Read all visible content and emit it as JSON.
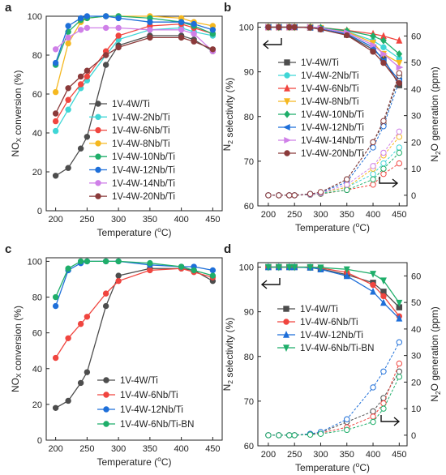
{
  "chart_data": [
    {
      "panel": "a",
      "type": "line",
      "xlabel": "Temperature (°C)",
      "ylabel": "NOx conversion (%)",
      "xlim": [
        185,
        465
      ],
      "ylim": [
        0,
        100
      ],
      "xticks": [
        200,
        250,
        300,
        350,
        400,
        450
      ],
      "yticks": [
        0,
        20,
        40,
        60,
        80,
        100
      ],
      "legend": "center-right",
      "x": [
        200,
        220,
        240,
        250,
        280,
        300,
        350,
        400,
        420,
        450
      ],
      "series": [
        {
          "name": "1V-4W/Ti",
          "color": "#4d4d4d",
          "marker": "circle",
          "values": [
            18,
            22,
            32,
            38,
            75,
            85,
            90,
            90,
            88,
            82
          ]
        },
        {
          "name": "1V-4W-2Nb/Ti",
          "color": "#3fd6d6",
          "marker": "circle",
          "values": [
            41,
            52,
            63,
            67,
            80,
            88,
            93,
            94,
            92,
            90
          ]
        },
        {
          "name": "1V-4W-6Nb/Ti",
          "color": "#f0453f",
          "marker": "circle",
          "values": [
            46,
            57,
            65,
            69,
            82,
            90,
            95,
            96,
            94,
            91
          ]
        },
        {
          "name": "1V-4W-8Nb/Ti",
          "color": "#f5b820",
          "marker": "circle",
          "values": [
            61,
            86,
            97,
            99,
            100,
            100,
            100,
            99,
            97,
            95
          ]
        },
        {
          "name": "1V-4W-10Nb/Ti",
          "color": "#1fae6a",
          "marker": "circle",
          "values": [
            75,
            92,
            98,
            99,
            100,
            100,
            99,
            97,
            95,
            91
          ]
        },
        {
          "name": "1V-4W-12Nb/Ti",
          "color": "#1e6fd9",
          "marker": "circle",
          "values": [
            76,
            95,
            99,
            100,
            100,
            99,
            97,
            97,
            96,
            93
          ]
        },
        {
          "name": "1V-4W-14Nb/Ti",
          "color": "#cf80e8",
          "marker": "circle",
          "values": [
            83,
            89,
            93,
            94,
            94,
            94,
            93,
            93,
            91,
            82
          ]
        },
        {
          "name": "1V-4W-20Nb/Ti",
          "color": "#8b3a3a",
          "marker": "circle",
          "values": [
            50,
            63,
            69,
            72,
            80,
            84,
            89,
            89,
            87,
            83
          ]
        }
      ]
    },
    {
      "panel": "b",
      "type": "line",
      "xlabel": "Temperature (°C)",
      "ylabel": "N2 selectivity (%)",
      "y2label": "N2O generation (ppm)",
      "xlim": [
        180,
        465
      ],
      "ylim": [
        60,
        101
      ],
      "y2lim": [
        -4,
        65
      ],
      "xticks": [
        200,
        250,
        300,
        350,
        400,
        450
      ],
      "yticks": [
        60,
        70,
        80,
        90,
        100
      ],
      "y2ticks": [
        0,
        10,
        20,
        30,
        40,
        50,
        60
      ],
      "legend": "left",
      "x": [
        200,
        220,
        240,
        250,
        280,
        300,
        350,
        400,
        420,
        450
      ],
      "series": [
        {
          "name": "1V-4W/Ti",
          "color": "#4d4d4d",
          "marker": "square",
          "selectivity": [
            100,
            100,
            100,
            100,
            99.9,
            99.6,
            98.3,
            95,
            93,
            87
          ],
          "n2o": [
            0,
            0,
            0,
            0,
            0.5,
            1,
            6,
            20,
            27,
            45
          ]
        },
        {
          "name": "1V-4W-2Nb/Ti",
          "color": "#3fd6d6",
          "marker": "circle",
          "selectivity": [
            100,
            100,
            100,
            100,
            100,
            99.8,
            99,
            97,
            95.5,
            93
          ],
          "n2o": [
            0,
            0,
            0,
            0,
            0.3,
            0.8,
            3,
            8,
            12,
            18
          ]
        },
        {
          "name": "1V-4W-6Nb/Ti",
          "color": "#f0453f",
          "marker": "triangle",
          "selectivity": [
            100,
            100,
            100,
            100,
            100,
            99.9,
            99.3,
            98.5,
            98,
            97
          ],
          "n2o": [
            0,
            0,
            0,
            0,
            0.2,
            0.5,
            2,
            4,
            8,
            12
          ]
        },
        {
          "name": "1V-4W-8Nb/Ti",
          "color": "#f5b820",
          "marker": "triangle-down",
          "selectivity": [
            100,
            100,
            100,
            100,
            100,
            99.8,
            99,
            96.5,
            94,
            92
          ],
          "n2o": [
            0,
            0,
            0,
            0,
            0.3,
            1,
            3,
            10,
            15,
            22
          ]
        },
        {
          "name": "1V-4W-10Nb/Ti",
          "color": "#1fae6a",
          "marker": "diamond",
          "selectivity": [
            100,
            100,
            100,
            100,
            100,
            99.9,
            99.2,
            98,
            97,
            94
          ],
          "n2o": [
            0,
            0,
            0,
            0,
            0.2,
            0.6,
            2,
            6,
            10,
            16
          ]
        },
        {
          "name": "1V-4W-12Nb/Ti",
          "color": "#1e6fd9",
          "marker": "triangle-left",
          "selectivity": [
            100,
            100,
            100,
            100,
            99.9,
            99.6,
            98.5,
            95.5,
            92.5,
            88
          ],
          "n2o": [
            0,
            0,
            0,
            0,
            0.5,
            1,
            5,
            18,
            26,
            43
          ]
        },
        {
          "name": "1V-4W-14Nb/Ti",
          "color": "#cf80e8",
          "marker": "triangle-right",
          "selectivity": [
            100,
            100,
            100,
            100,
            100,
            99.8,
            98.8,
            96,
            94,
            91
          ],
          "n2o": [
            0,
            0,
            0,
            0,
            0.3,
            0.8,
            4,
            11,
            16,
            24
          ]
        },
        {
          "name": "1V-4W-20Nb/Ti",
          "color": "#8b3a3a",
          "marker": "circle",
          "selectivity": [
            100,
            100,
            100,
            100,
            99.9,
            99.5,
            98.2,
            94.5,
            92,
            87.5
          ],
          "n2o": [
            0,
            0,
            0,
            0,
            0.5,
            1.2,
            6,
            20,
            28,
            46
          ]
        }
      ]
    },
    {
      "panel": "c",
      "type": "line",
      "xlabel": "Temperature (°C)",
      "ylabel": "NOx conversion (%)",
      "xlim": [
        185,
        465
      ],
      "ylim": [
        0,
        102
      ],
      "xticks": [
        200,
        250,
        300,
        350,
        400,
        450
      ],
      "yticks": [
        0,
        20,
        40,
        60,
        80,
        100
      ],
      "legend": "bottom-right",
      "x": [
        200,
        220,
        240,
        250,
        280,
        300,
        350,
        400,
        420,
        450
      ],
      "series": [
        {
          "name": "1V-4W/Ti",
          "color": "#4d4d4d",
          "marker": "circle",
          "values": [
            18,
            22,
            32,
            38,
            75,
            92,
            96,
            96,
            95,
            89
          ]
        },
        {
          "name": "1V-4W-6Nb/Ti",
          "color": "#f0453f",
          "marker": "circle",
          "values": [
            46,
            57,
            65,
            69,
            82,
            89,
            95,
            96,
            94,
            91
          ]
        },
        {
          "name": "1V-4W-12Nb/Ti",
          "color": "#1e6fd9",
          "marker": "circle",
          "values": [
            75,
            95,
            99,
            100,
            100,
            100,
            98,
            97,
            97,
            95
          ]
        },
        {
          "name": "1V-4W-6Nb/Ti-BN",
          "color": "#1fae6a",
          "marker": "circle",
          "values": [
            80,
            96,
            100,
            100,
            100,
            100,
            99,
            97,
            95,
            92
          ]
        }
      ]
    },
    {
      "panel": "d",
      "type": "line",
      "xlabel": "Temperature (°C)",
      "ylabel": "N2 selectivity (%)",
      "y2label": "N2O generation (ppm)",
      "xlim": [
        180,
        465
      ],
      "ylim": [
        60,
        101
      ],
      "y2lim": [
        -4,
        65
      ],
      "xticks": [
        200,
        250,
        300,
        350,
        400,
        450
      ],
      "yticks": [
        60,
        70,
        80,
        90,
        100
      ],
      "y2ticks": [
        0,
        10,
        20,
        30,
        40,
        50,
        60
      ],
      "legend": "left",
      "x": [
        200,
        220,
        240,
        250,
        280,
        300,
        350,
        400,
        420,
        450
      ],
      "series": [
        {
          "name": "1V-4W/Ti",
          "color": "#4d4d4d",
          "marker": "square",
          "selectivity": [
            100,
            100,
            100,
            100,
            99.9,
            99.6,
            98.3,
            96.5,
            94.5,
            91
          ],
          "n2o": [
            0,
            0,
            0,
            0,
            0.5,
            1,
            5,
            9,
            14,
            24
          ]
        },
        {
          "name": "1V-4W-6Nb/Ti",
          "color": "#f0453f",
          "marker": "circle",
          "selectivity": [
            100,
            100,
            100,
            100,
            100,
            99.8,
            98.8,
            96,
            93.5,
            89
          ],
          "n2o": [
            0,
            0,
            0,
            0,
            0.3,
            0.8,
            3,
            7,
            12,
            27
          ]
        },
        {
          "name": "1V-4W-12Nb/Ti",
          "color": "#1e6fd9",
          "marker": "triangle",
          "selectivity": [
            100,
            100,
            100,
            100,
            99.9,
            99.5,
            98,
            94.5,
            92,
            88.5
          ],
          "n2o": [
            0,
            0,
            0,
            0,
            0.5,
            1.2,
            6,
            18,
            24,
            35
          ]
        },
        {
          "name": "1V-4W-6Nb/Ti-BN",
          "color": "#1fae6a",
          "marker": "triangle-down",
          "selectivity": [
            100,
            100,
            100,
            100,
            100,
            99.9,
            99.5,
            98.5,
            97,
            92
          ],
          "n2o": [
            0,
            0,
            0,
            0,
            0.2,
            0.5,
            2,
            5,
            10,
            22
          ]
        }
      ]
    }
  ]
}
